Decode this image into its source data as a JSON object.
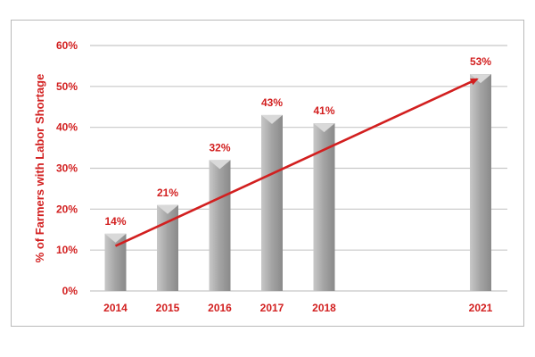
{
  "chart_data": {
    "type": "bar",
    "title": "",
    "xlabel": "",
    "ylabel": "% of Farmers with Labor Shortage",
    "categories": [
      "2014",
      "2015",
      "2016",
      "2017",
      "2018",
      "2021"
    ],
    "values": [
      14,
      21,
      32,
      43,
      41,
      53
    ],
    "value_labels": [
      "14%",
      "21%",
      "32%",
      "43%",
      "41%",
      "53%"
    ],
    "ylim": [
      0,
      60
    ],
    "yticks": [
      0,
      10,
      20,
      30,
      40,
      50,
      60
    ],
    "ytick_labels": [
      "0%",
      "10%",
      "20%",
      "30%",
      "40%",
      "50%",
      "60%"
    ],
    "grid": true,
    "legend": "none",
    "trend_arrow": {
      "from": {
        "x": "2014",
        "y": 11
      },
      "to": {
        "x": "2021",
        "y": 52
      }
    },
    "colors": {
      "bar": "#a3a3a3",
      "bar_light": "#c8c8c8",
      "bar_dark": "#8a8a8a",
      "bar_cap": "#d9d9d9",
      "text": "#d21f1f",
      "arrow": "#d21f1f",
      "grid": "#c8c8c8"
    }
  }
}
